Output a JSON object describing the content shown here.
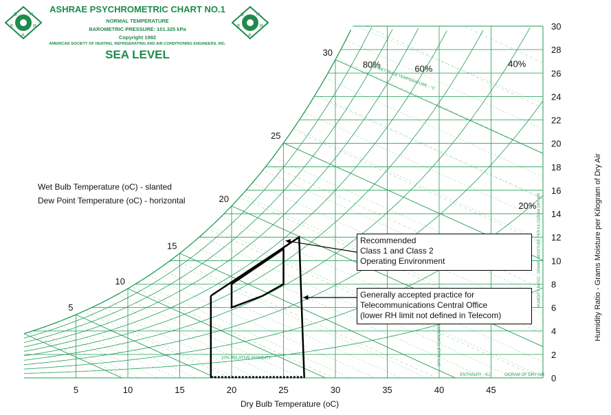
{
  "header": {
    "title": "ASHRAE PSYCHROMETRIC CHART NO.1",
    "line1": "NORMAL TEMPERATURE",
    "line2": "BAROMETRIC PRESSURE: 101.325 kPa",
    "line3": "Copyright 1992",
    "line4": "AMERICAN SOCIETY OF HEATING, REFRIGERATING AND AIR-CONDITIONING ENGINEERS, INC.",
    "sea_level": "SEA LEVEL",
    "logo_letters": [
      "S",
      "H",
      "R",
      "A",
      "E"
    ]
  },
  "captions": {
    "wet_bulb": "Wet Bulb Temperature (oC) - slanted",
    "dew_point": "Dew Point Temperature (oC) - horizontal"
  },
  "callouts": {
    "recommended": [
      "Recommended",
      "Class 1 and Class 2",
      "Operating Environment"
    ],
    "telecom": [
      "Generally accepted practice  for",
      "Telecommunications Central Office",
      "(lower RH limit not defined in Telecom)"
    ]
  },
  "colors": {
    "grid": "#1f9a55",
    "text": "#111111",
    "header": "#1f8a4c"
  },
  "chart_data": {
    "type": "line",
    "title": "ASHRAE PSYCHROMETRIC CHART NO.1",
    "xlabel": "Dry Bulb Temperature (oC)",
    "ylabel": "Humidity Ratio - Grams Moisture per Kilogram of Dry Air",
    "xlim": [
      0,
      50
    ],
    "ylim": [
      0,
      30
    ],
    "x_ticks": [
      5,
      10,
      15,
      20,
      25,
      30,
      35,
      40,
      45
    ],
    "y_ticks": [
      0,
      2,
      4,
      6,
      8,
      10,
      12,
      14,
      16,
      18,
      20,
      22,
      24,
      26,
      28,
      30
    ],
    "rh_labels": [
      "80%",
      "60%",
      "40%",
      "20%"
    ],
    "wet_bulb_labels": [
      5,
      10,
      15,
      20,
      25,
      30
    ],
    "small_labels": {
      "relative_humidity": "10% RELATIVE HUMIDITY",
      "wet_bulb_scale": "30 WET BULB TEMPERATURE - °C",
      "enthalpy": "ENTHALPY - KJ",
      "enthalpy_tail": "OGRAM OF DRY AIR",
      "humidity_ratio_scale": "HUMIDITY RATIO - GRAMS MOISTURE PER KILOGRAM DRY AIR",
      "dry_bulb_scale": "DRY BULB TEMPERATURE"
    },
    "regions": [
      {
        "name": "Recommended Class 1 and Class 2 Operating Environment",
        "points": [
          [
            20.0,
            6.0
          ],
          [
            23.0,
            7.0
          ],
          [
            25.0,
            8.0
          ],
          [
            25.0,
            11.0
          ],
          [
            20.0,
            8.0
          ]
        ]
      },
      {
        "name": "Generally accepted practice for Telecommunications Central Office",
        "points": [
          [
            18.0,
            0.0
          ],
          [
            27.0,
            0.0
          ],
          [
            26.5,
            12.0
          ],
          [
            18.0,
            7.0
          ]
        ]
      }
    ]
  }
}
